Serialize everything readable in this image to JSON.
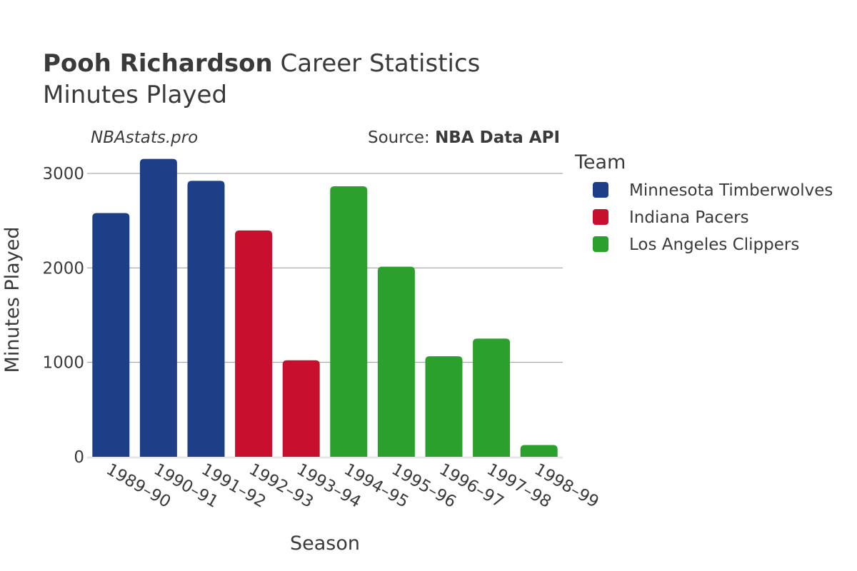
{
  "title": {
    "player_name": "Pooh Richardson",
    "suffix": " Career Statistics",
    "subtitle": "Minutes Played"
  },
  "watermark": "NBAstats.pro",
  "source": {
    "prefix": "Source: ",
    "name": "NBA Data API"
  },
  "legend": {
    "title": "Team",
    "items": [
      {
        "label": "Minnesota Timberwolves",
        "color": "#1c3f87"
      },
      {
        "label": "Indiana Pacers",
        "color": "#c8102e"
      },
      {
        "label": "Los Angeles Clippers",
        "color": "#2ca02c"
      }
    ]
  },
  "chart_data": {
    "type": "bar",
    "xlabel": "Season",
    "ylabel": "Minutes Played",
    "ylim": [
      0,
      3300
    ],
    "yticks": [
      0,
      1000,
      2000,
      3000
    ],
    "grid": true,
    "legend_position": "right",
    "categories": [
      "1989–90",
      "1990–91",
      "1991–92",
      "1992–93",
      "1993–94",
      "1994–95",
      "1995–96",
      "1996–97",
      "1997–98",
      "1998–99"
    ],
    "values": [
      2581,
      3154,
      2922,
      2396,
      1022,
      2864,
      2013,
      1065,
      1252,
      125
    ],
    "teams": [
      "Minnesota Timberwolves",
      "Minnesota Timberwolves",
      "Minnesota Timberwolves",
      "Indiana Pacers",
      "Indiana Pacers",
      "Los Angeles Clippers",
      "Los Angeles Clippers",
      "Los Angeles Clippers",
      "Los Angeles Clippers",
      "Los Angeles Clippers"
    ]
  }
}
